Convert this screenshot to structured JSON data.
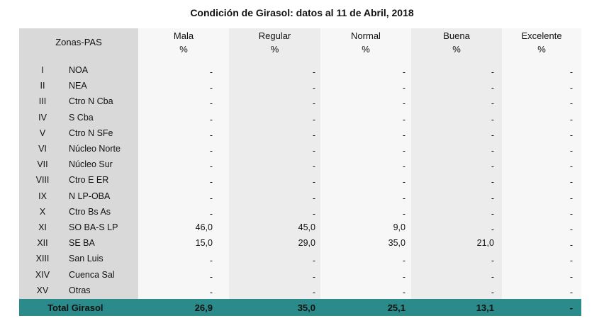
{
  "title": "Condición de Girasol: datos al 11 de Abril, 2018",
  "table": {
    "zone_header": "Zonas-PAS",
    "columns": [
      {
        "name": "Mala",
        "unit": "%"
      },
      {
        "name": "Regular",
        "unit": "%"
      },
      {
        "name": "Normal",
        "unit": "%"
      },
      {
        "name": "Buena",
        "unit": "%"
      },
      {
        "name": "Excelente",
        "unit": "%"
      }
    ],
    "rows": [
      [
        "I",
        "NOA",
        "-",
        "-",
        "-",
        "-",
        "-"
      ],
      [
        "II",
        "NEA",
        "-",
        "-",
        "-",
        "-",
        "-"
      ],
      [
        "III",
        "Ctro N Cba",
        "-",
        "-",
        "-",
        "-",
        "-"
      ],
      [
        "IV",
        "S Cba",
        "-",
        "-",
        "-",
        "-",
        "-"
      ],
      [
        "V",
        "Ctro N SFe",
        "-",
        "-",
        "-",
        "-",
        "-"
      ],
      [
        "VI",
        "Núcleo Norte",
        "-",
        "-",
        "-",
        "-",
        "-"
      ],
      [
        "VII",
        "Núcleo Sur",
        "-",
        "-",
        "-",
        "-",
        "-"
      ],
      [
        "VIII",
        "Ctro E ER",
        "-",
        "-",
        "-",
        "-",
        "-"
      ],
      [
        "IX",
        "N LP-OBA",
        "-",
        "-",
        "-",
        "-",
        "-"
      ],
      [
        "X",
        "Ctro Bs As",
        "-",
        "-",
        "-",
        "-",
        "-"
      ],
      [
        "XI",
        "SO BA-S LP",
        "46,0",
        "45,0",
        "9,0",
        "-",
        "-"
      ],
      [
        "XII",
        "SE BA",
        "15,0",
        "29,0",
        "35,0",
        "21,0",
        "-"
      ],
      [
        "XIII",
        "San Luis",
        "-",
        "-",
        "-",
        "-",
        "-"
      ],
      [
        "XIV",
        "Cuenca Sal",
        "-",
        "-",
        "-",
        "-",
        "-"
      ],
      [
        "XV",
        "Otras",
        "-",
        "-",
        "-",
        "-",
        "-"
      ]
    ],
    "total": {
      "label": "Total Girasol",
      "values": [
        "26,9",
        "35,0",
        "25,1",
        "13,1",
        "-"
      ]
    }
  }
}
